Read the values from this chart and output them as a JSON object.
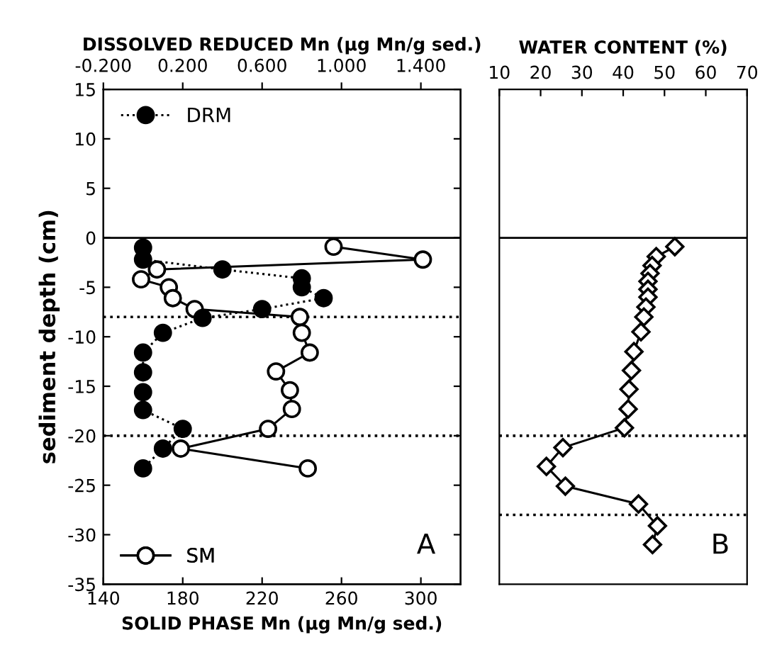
{
  "chart_data": [
    {
      "type": "line",
      "xlabel": "SOLID PHASE Mn (µg Mn/g sed.)",
      "x2label": "DISSOLVED REDUCED Mn (µg Mn/g sed.)",
      "ylabel": "sediment depth (cm)",
      "xlim": [
        140,
        320
      ],
      "xticks": [
        140,
        180,
        220,
        260,
        300
      ],
      "x2lim": [
        -0.2,
        1.6
      ],
      "x2ticks": [
        {
          "value": -0.2,
          "label": "-0.200"
        },
        {
          "value": 0.2,
          "label": "0.200"
        },
        {
          "value": 0.6,
          "label": "0.600"
        },
        {
          "value": 1.0,
          "label": "1.000"
        },
        {
          "value": 1.4,
          "label": "1.400"
        }
      ],
      "ylim": [
        -35,
        15
      ],
      "yticks": [
        15,
        10,
        5,
        0,
        -5,
        -10,
        -15,
        -20,
        -25,
        -30,
        -35
      ],
      "series": [
        {
          "name": "DRM",
          "axis": "x2",
          "color": "#000000",
          "marker": "circle",
          "line_style": "dotted",
          "x": [
            0.0,
            0.0,
            0.4,
            0.8,
            0.8,
            0.91,
            0.6,
            0.3,
            0.1,
            0.0,
            0.0,
            0.0,
            0.0,
            0.2,
            0.1,
            0.0
          ],
          "values": [
            -1.0,
            -2.2,
            -3.2,
            -4.1,
            -5.0,
            -6.1,
            -7.2,
            -8.1,
            -9.6,
            -11.6,
            -13.6,
            -15.6,
            -17.4,
            -19.3,
            -21.3,
            -23.3
          ]
        },
        {
          "name": "SM",
          "color": "#000000",
          "marker": "circle",
          "line_style": "solid",
          "x": [
            256,
            301,
            167,
            159,
            173,
            175,
            186,
            239,
            240,
            244,
            227,
            234,
            235,
            223,
            179,
            243
          ],
          "values": [
            -0.9,
            -2.2,
            -3.2,
            -4.2,
            -5.0,
            -6.1,
            -7.2,
            -8.0,
            -9.6,
            -11.6,
            -13.5,
            -15.4,
            -17.3,
            -19.3,
            -21.3,
            -23.3
          ]
        }
      ],
      "ref_lines": [
        {
          "axis": "y",
          "value": 0,
          "line_style": "solid"
        },
        {
          "axis": "y",
          "value": -8,
          "line_style": "dotted"
        },
        {
          "axis": "y",
          "value": -20,
          "line_style": "dotted"
        }
      ],
      "annotations": [
        "A"
      ],
      "legend": "left",
      "grid": false
    },
    {
      "type": "line",
      "xlabel": "WATER CONTENT (%)",
      "xlim": [
        10,
        70
      ],
      "xticks": [
        10,
        20,
        30,
        40,
        50,
        60,
        70
      ],
      "ylim": [
        -35,
        15
      ],
      "tick_labels": "x",
      "series": [
        {
          "color": "#000000",
          "marker": "diamond",
          "line_style": "solid",
          "x": [
            52.5,
            48,
            47,
            46.5,
            46,
            46,
            46,
            45.5,
            45,
            44.3,
            42.6,
            42,
            41.4,
            41.2,
            40.3,
            25.4,
            21.4,
            26,
            43.7,
            48.3,
            47.1
          ],
          "values": [
            -0.9,
            -1.9,
            -2.8,
            -3.6,
            -4.4,
            -5.2,
            -6.0,
            -7.0,
            -8.0,
            -9.5,
            -11.5,
            -13.4,
            -15.3,
            -17.3,
            -19.2,
            -21.2,
            -23.1,
            -25.1,
            -26.9,
            -29.1,
            -31.0
          ]
        }
      ],
      "ref_lines": [
        {
          "axis": "y",
          "value": 0,
          "line_style": "solid"
        },
        {
          "axis": "y",
          "value": -20,
          "line_style": "dotted"
        },
        {
          "axis": "y",
          "value": -28,
          "line_style": "dotted"
        }
      ],
      "annotations": [
        "B"
      ],
      "grid": false
    }
  ]
}
